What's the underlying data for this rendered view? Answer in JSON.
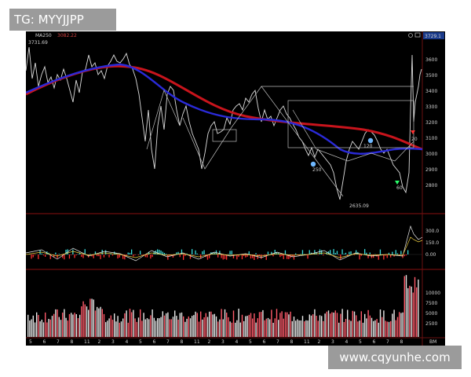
{
  "watermark_top": "TG: MYYJJPP",
  "watermark_bottom": "www.cqyunhe.com",
  "main_chart": {
    "ma_label_a": "MA250",
    "ma_label_b": "3082.22",
    "high_label": "3731.69",
    "low_label": "2635.09",
    "last_price_label": "3729.1",
    "price_ticks": [
      "3600",
      "3500",
      "3400",
      "3300",
      "3200",
      "3100",
      "3000",
      "2900",
      "2800"
    ],
    "markers": [
      {
        "text": "20",
        "color": "#ff3030"
      },
      {
        "text": "120",
        "color": "#6fb8ff"
      },
      {
        "text": "250",
        "color": "#6fb8ff"
      },
      {
        "text": "60",
        "color": "#2aff6a"
      }
    ],
    "colors": {
      "ma_red": "#d4141e",
      "ma_blue": "#2a2ad0",
      "candles": "#d8d8d8"
    }
  },
  "macd_panel": {
    "ticks": [
      "300.0",
      "150.0",
      "0.00"
    ]
  },
  "volume_panel": {
    "ticks": [
      "10000",
      "7500",
      "5000",
      "2500"
    ]
  },
  "x_axis": {
    "labels": [
      "5",
      "6",
      "7",
      "8",
      "11",
      "2",
      "3",
      "4",
      "5",
      "6",
      "7",
      "8",
      "11",
      "2",
      "3",
      "4",
      "5",
      "6",
      "7",
      "8",
      "11",
      "2",
      "3",
      "4",
      "5",
      "6",
      "7",
      "8"
    ],
    "unit_label": "BM"
  },
  "toolbar_icons": [
    "pin-icon",
    "window-icon"
  ]
}
